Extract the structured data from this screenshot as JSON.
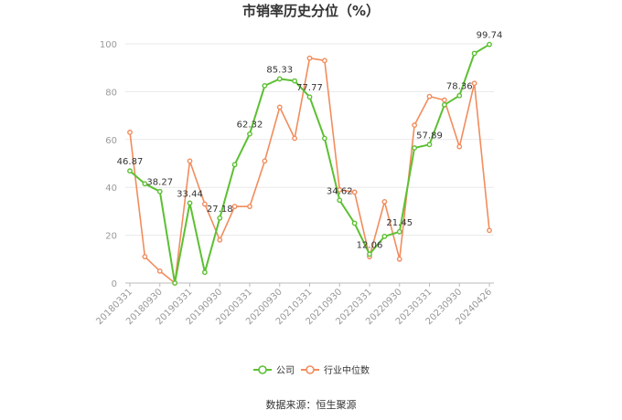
{
  "chart_data": {
    "type": "line",
    "title": "市销率历史分位（%）",
    "source": "数据来源：恒生聚源",
    "ylim": [
      0,
      100
    ],
    "yticks": [
      0,
      20,
      40,
      60,
      80,
      100
    ],
    "grid": true,
    "legend_position": "bottom-center",
    "x_tick_labels": [
      "20180331",
      "20180930",
      "20190331",
      "20190930",
      "20200331",
      "20200930",
      "20210331",
      "20210930",
      "20220331",
      "20220930",
      "20230331",
      "20230930",
      "20240426"
    ],
    "series": [
      {
        "name": "公司",
        "color": "#5cc032",
        "values": [
          46.87,
          41.5,
          38.27,
          0.0,
          33.44,
          4.5,
          27.18,
          49.5,
          62.32,
          82.5,
          85.33,
          84.5,
          77.77,
          60.5,
          34.62,
          25.0,
          12.06,
          19.5,
          21.45,
          56.5,
          57.89,
          74.5,
          78.36,
          96.0,
          99.74
        ],
        "labeled_points": [
          0,
          2,
          4,
          6,
          8,
          10,
          12,
          14,
          16,
          18,
          20,
          22,
          24
        ]
      },
      {
        "name": "行业中位数",
        "color": "#f28c5c",
        "values": [
          63.0,
          11.0,
          5.0,
          0.0,
          51.0,
          33.0,
          18.0,
          32.0,
          32.0,
          51.0,
          73.5,
          60.5,
          94.0,
          93.0,
          39.0,
          38.0,
          11.0,
          34.0,
          10.0,
          66.0,
          78.0,
          76.5,
          57.0,
          83.5,
          22.0
        ]
      }
    ]
  }
}
